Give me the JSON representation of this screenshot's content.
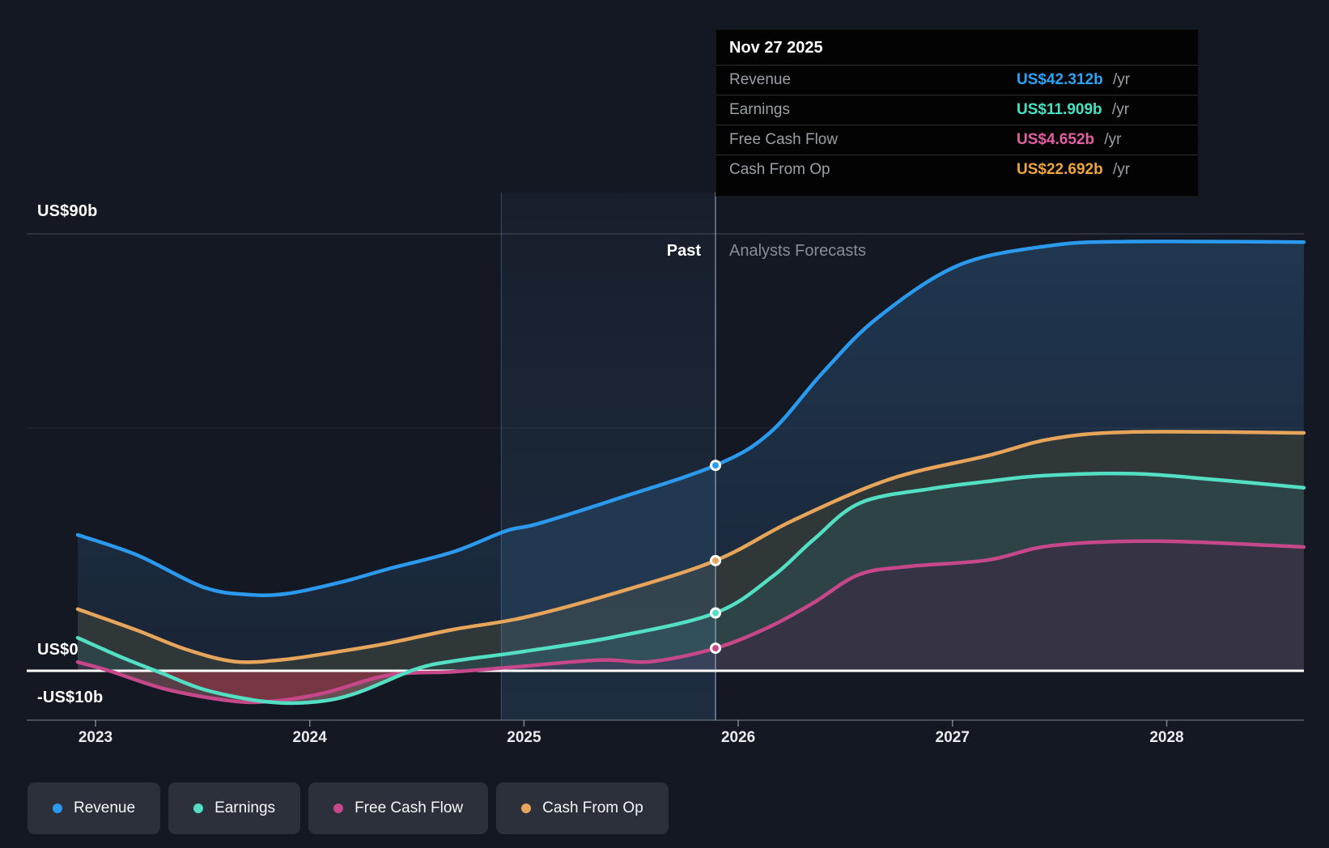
{
  "page": {
    "background": "#141822"
  },
  "tooltip": {
    "date": "Nov 27 2025",
    "rows": [
      {
        "label": "Revenue",
        "value": "US$42.312b",
        "suffix": "/yr",
        "color": "#2ba3f7"
      },
      {
        "label": "Earnings",
        "value": "US$11.909b",
        "suffix": "/yr",
        "color": "#45e3c3"
      },
      {
        "label": "Free Cash Flow",
        "value": "US$4.652b",
        "suffix": "/yr",
        "color": "#e55da5"
      },
      {
        "label": "Cash From Op",
        "value": "US$22.692b",
        "suffix": "/yr",
        "color": "#f0a43c"
      }
    ]
  },
  "annotations": {
    "past_label": "Past",
    "forecast_label": "Analysts Forecasts"
  },
  "y_axis_labels": [
    {
      "text": "US$90b",
      "value": 90
    },
    {
      "text": "US$0",
      "value": 0
    },
    {
      "text": "-US$10b",
      "value": -10
    }
  ],
  "x_ticks": [
    2023,
    2024,
    2025,
    2026,
    2027,
    2028
  ],
  "legend": [
    {
      "label": "Revenue",
      "color": "#2b9aee"
    },
    {
      "label": "Earnings",
      "color": "#53dfc4"
    },
    {
      "label": "Free Cash Flow",
      "color": "#c6488b"
    },
    {
      "label": "Cash From Op",
      "color": "#e6a55a"
    }
  ],
  "chart_data": {
    "type": "area",
    "title": "Earnings and Revenue Growth Forecast",
    "x_unit": "year",
    "xlim": [
      2022.9,
      2028.65
    ],
    "ylim": [
      -10.5,
      91.5
    ],
    "grid": {
      "labeled_lines": [
        90,
        0,
        -10
      ],
      "minor_line": 50
    },
    "legend_position": "bottom-left",
    "divider_x": 2025.894,
    "highlight_band_x": [
      2024.894,
      2025.894
    ],
    "units": "US$ billions per year",
    "series": [
      {
        "name": "Revenue",
        "color": "#2b9aee",
        "points": [
          [
            2022.917,
            28
          ],
          [
            2023.196,
            23.8
          ],
          [
            2023.499,
            17.3
          ],
          [
            2023.706,
            15.7
          ],
          [
            2023.895,
            15.9
          ],
          [
            2024.141,
            18.2
          ],
          [
            2024.368,
            21
          ],
          [
            2024.67,
            24.5
          ],
          [
            2024.915,
            28.8
          ],
          [
            2025.066,
            30.3
          ],
          [
            2025.425,
            35.3
          ],
          [
            2025.894,
            42.312
          ],
          [
            2026.147,
            49
          ],
          [
            2026.396,
            61.5
          ],
          [
            2026.65,
            72.7
          ],
          [
            2027.027,
            83.5
          ],
          [
            2027.443,
            87.5
          ],
          [
            2027.805,
            88.4
          ],
          [
            2028.64,
            88.3
          ]
        ]
      },
      {
        "name": "Cash From Op",
        "color": "#e6a55a",
        "points": [
          [
            2022.917,
            12.7
          ],
          [
            2023.196,
            8.3
          ],
          [
            2023.423,
            4.4
          ],
          [
            2023.65,
            1.9
          ],
          [
            2023.876,
            2.3
          ],
          [
            2024.141,
            4
          ],
          [
            2024.368,
            5.7
          ],
          [
            2024.67,
            8.5
          ],
          [
            2025.002,
            11
          ],
          [
            2025.425,
            16
          ],
          [
            2025.894,
            22.692
          ],
          [
            2026.257,
            31
          ],
          [
            2026.71,
            39.5
          ],
          [
            2027.163,
            44.3
          ],
          [
            2027.466,
            47.8
          ],
          [
            2027.843,
            49.2
          ],
          [
            2028.64,
            49
          ]
        ]
      },
      {
        "name": "Earnings",
        "color": "#53dfc4",
        "points": [
          [
            2022.917,
            6.8
          ],
          [
            2023.121,
            2.8
          ],
          [
            2023.31,
            -0.5
          ],
          [
            2023.518,
            -4
          ],
          [
            2023.801,
            -6.4
          ],
          [
            2024.028,
            -6.4
          ],
          [
            2024.217,
            -4.6
          ],
          [
            2024.492,
            0.3
          ],
          [
            2024.67,
            2
          ],
          [
            2025.002,
            4
          ],
          [
            2025.425,
            7
          ],
          [
            2025.894,
            11.909
          ],
          [
            2026.162,
            19.5
          ],
          [
            2026.351,
            27
          ],
          [
            2026.57,
            34.6
          ],
          [
            2026.899,
            37.5
          ],
          [
            2027.163,
            39
          ],
          [
            2027.428,
            40.2
          ],
          [
            2027.843,
            40.6
          ],
          [
            2028.221,
            39.4
          ],
          [
            2028.64,
            37.7
          ]
        ]
      },
      {
        "name": "Free Cash Flow",
        "color": "#c6488b",
        "points": [
          [
            2022.917,
            1.8
          ],
          [
            2023.064,
            0
          ],
          [
            2023.329,
            -3.8
          ],
          [
            2023.631,
            -6.2
          ],
          [
            2023.82,
            -6.3
          ],
          [
            2024.065,
            -4.6
          ],
          [
            2024.368,
            -0.9
          ],
          [
            2024.67,
            -0.2
          ],
          [
            2024.934,
            0.7
          ],
          [
            2025.35,
            2.2
          ],
          [
            2025.595,
            1.9
          ],
          [
            2025.894,
            4.652
          ],
          [
            2026.143,
            9
          ],
          [
            2026.351,
            14
          ],
          [
            2026.563,
            19.8
          ],
          [
            2026.797,
            21.5
          ],
          [
            2027.163,
            22.8
          ],
          [
            2027.466,
            25.8
          ],
          [
            2027.957,
            26.7
          ],
          [
            2028.64,
            25.5
          ]
        ]
      }
    ],
    "markers": {
      "x": 2025.894,
      "points": [
        {
          "series": "Revenue",
          "value": 42.312,
          "color": "#2b9aee"
        },
        {
          "series": "Cash From Op",
          "value": 22.692,
          "color": "#e6a55a"
        },
        {
          "series": "Earnings",
          "value": 11.909,
          "color": "#53dfc4"
        },
        {
          "series": "Free Cash Flow",
          "value": 4.652,
          "color": "#c6488b"
        }
      ]
    }
  }
}
